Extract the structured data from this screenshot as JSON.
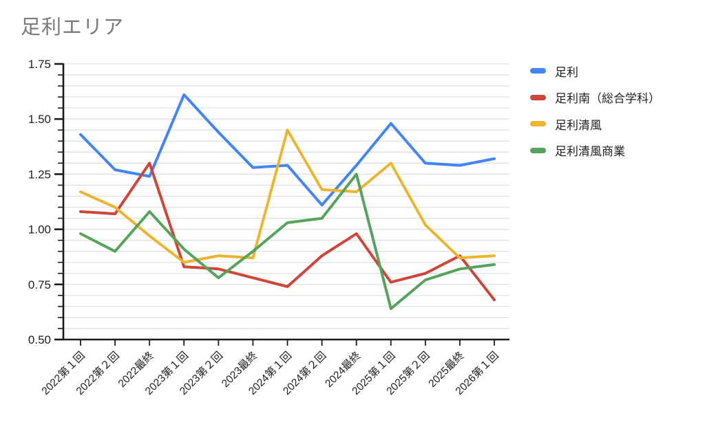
{
  "chart_data": {
    "type": "line",
    "title": "足利エリア",
    "categories": [
      "2022第１回",
      "2022第２回",
      "2022最終",
      "2023第１回",
      "2023第２回",
      "2023最終",
      "2024第１回",
      "2024第２回",
      "2024最終",
      "2025第１回",
      "2025第２回",
      "2025最終",
      "2026第１回"
    ],
    "series": [
      {
        "name": "足利",
        "color": "#4285F4",
        "values": [
          1.43,
          1.27,
          1.24,
          1.61,
          1.44,
          1.28,
          1.29,
          1.11,
          1.29,
          1.48,
          1.3,
          1.29,
          1.32
        ]
      },
      {
        "name": "足利南（総合学科）",
        "color": "#D0453A",
        "values": [
          1.08,
          1.07,
          1.3,
          0.83,
          0.82,
          0.78,
          0.74,
          0.88,
          0.98,
          0.76,
          0.8,
          0.88,
          0.68
        ]
      },
      {
        "name": "足利清風",
        "color": "#EDB52F",
        "values": [
          1.17,
          1.1,
          0.97,
          0.85,
          0.88,
          0.87,
          1.45,
          1.18,
          1.17,
          1.3,
          1.02,
          0.87,
          0.88
        ]
      },
      {
        "name": "足利清風商業",
        "color": "#56A35C",
        "values": [
          0.98,
          0.9,
          1.08,
          0.91,
          0.78,
          0.9,
          1.03,
          1.05,
          1.25,
          0.64,
          0.77,
          0.82,
          0.84
        ]
      }
    ],
    "ylim": [
      0.5,
      1.75
    ],
    "y_major_step": 0.25,
    "y_minor_step": 0.05,
    "y_tick_labels": [
      "0.50",
      "0.75",
      "1.00",
      "1.25",
      "1.50",
      "1.75"
    ],
    "xlabel": "",
    "ylabel": "",
    "grid": true,
    "legend_position": "right"
  },
  "style": {
    "grid_color": "#e0e0e0",
    "axis_color": "#1a1a1a",
    "title_color": "#7a7a7a"
  }
}
